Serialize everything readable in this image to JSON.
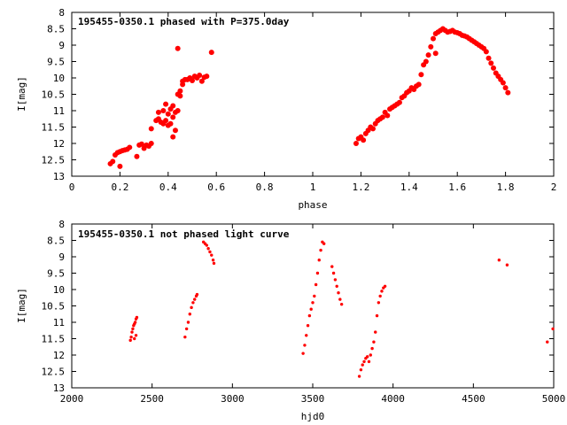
{
  "colors": {
    "data": "#ff0000",
    "axis": "#000000",
    "background": "#ffffff"
  },
  "chart_data": [
    {
      "type": "scatter",
      "title": "195455-0350.1 phased with P=375.0day",
      "xlabel": "phase",
      "ylabel": "I[mag]",
      "xlim": [
        0,
        2
      ],
      "ylim": [
        8,
        13
      ],
      "y_inverted": true,
      "grid": false,
      "marker": "filled-circle",
      "x_ticks": [
        "0",
        "0.2",
        "0.4",
        "0.6",
        "0.8",
        "1",
        "1.2",
        "1.4",
        "1.6",
        "1.8",
        "2"
      ],
      "y_ticks": [
        "8",
        "8.5",
        "9",
        "9.5",
        "10",
        "10.5",
        "11",
        "11.5",
        "12",
        "12.5",
        "13"
      ],
      "series": [
        {
          "points": [
            [
              0.16,
              12.62
            ],
            [
              0.17,
              12.55
            ],
            [
              0.18,
              12.35
            ],
            [
              0.19,
              12.28
            ],
            [
              0.2,
              12.25
            ],
            [
              0.21,
              12.22
            ],
            [
              0.22,
              12.2
            ],
            [
              0.23,
              12.18
            ],
            [
              0.24,
              12.12
            ],
            [
              0.2,
              12.7
            ],
            [
              0.27,
              12.4
            ],
            [
              0.28,
              12.05
            ],
            [
              0.29,
              12.02
            ],
            [
              0.3,
              12.15
            ],
            [
              0.31,
              12.05
            ],
            [
              0.32,
              12.08
            ],
            [
              0.33,
              12.0
            ],
            [
              0.33,
              11.55
            ],
            [
              0.35,
              11.3
            ],
            [
              0.36,
              11.25
            ],
            [
              0.36,
              11.05
            ],
            [
              0.37,
              11.35
            ],
            [
              0.38,
              11.0
            ],
            [
              0.38,
              11.4
            ],
            [
              0.39,
              11.3
            ],
            [
              0.39,
              10.8
            ],
            [
              0.4,
              11.1
            ],
            [
              0.4,
              11.45
            ],
            [
              0.41,
              10.95
            ],
            [
              0.41,
              11.4
            ],
            [
              0.42,
              10.85
            ],
            [
              0.42,
              11.2
            ],
            [
              0.42,
              11.8
            ],
            [
              0.43,
              11.05
            ],
            [
              0.43,
              11.6
            ],
            [
              0.44,
              11.0
            ],
            [
              0.44,
              10.5
            ],
            [
              0.45,
              10.4
            ],
            [
              0.45,
              10.55
            ],
            [
              0.46,
              10.2
            ],
            [
              0.46,
              10.1
            ],
            [
              0.47,
              10.05
            ],
            [
              0.48,
              10.05
            ],
            [
              0.49,
              10.0
            ],
            [
              0.5,
              10.08
            ],
            [
              0.51,
              9.95
            ],
            [
              0.52,
              10.0
            ],
            [
              0.53,
              9.92
            ],
            [
              0.54,
              10.1
            ],
            [
              0.55,
              9.98
            ],
            [
              0.56,
              9.95
            ],
            [
              0.44,
              9.1
            ],
            [
              0.58,
              9.22
            ]
          ]
        },
        {
          "points": [
            [
              1.18,
              12.0
            ],
            [
              1.19,
              11.85
            ],
            [
              1.2,
              11.8
            ],
            [
              1.21,
              11.9
            ],
            [
              1.22,
              11.7
            ],
            [
              1.23,
              11.6
            ],
            [
              1.24,
              11.5
            ],
            [
              1.25,
              11.55
            ],
            [
              1.26,
              11.4
            ],
            [
              1.27,
              11.3
            ],
            [
              1.28,
              11.25
            ],
            [
              1.29,
              11.2
            ],
            [
              1.3,
              11.05
            ],
            [
              1.31,
              11.15
            ],
            [
              1.32,
              10.95
            ],
            [
              1.33,
              10.9
            ],
            [
              1.34,
              10.85
            ],
            [
              1.35,
              10.8
            ],
            [
              1.36,
              10.75
            ],
            [
              1.37,
              10.6
            ],
            [
              1.38,
              10.55
            ],
            [
              1.39,
              10.45
            ],
            [
              1.4,
              10.4
            ],
            [
              1.41,
              10.3
            ],
            [
              1.42,
              10.35
            ],
            [
              1.43,
              10.25
            ],
            [
              1.44,
              10.2
            ],
            [
              1.45,
              9.9
            ],
            [
              1.46,
              9.6
            ],
            [
              1.47,
              9.5
            ],
            [
              1.48,
              9.3
            ],
            [
              1.49,
              9.05
            ],
            [
              1.5,
              8.8
            ],
            [
              1.51,
              8.65
            ],
            [
              1.52,
              8.6
            ],
            [
              1.53,
              8.55
            ],
            [
              1.54,
              8.5
            ],
            [
              1.55,
              8.55
            ],
            [
              1.56,
              8.6
            ],
            [
              1.57,
              8.58
            ],
            [
              1.58,
              8.55
            ],
            [
              1.59,
              8.6
            ],
            [
              1.6,
              8.62
            ],
            [
              1.61,
              8.65
            ],
            [
              1.62,
              8.7
            ],
            [
              1.63,
              8.72
            ],
            [
              1.64,
              8.75
            ],
            [
              1.65,
              8.8
            ],
            [
              1.66,
              8.85
            ],
            [
              1.67,
              8.9
            ],
            [
              1.68,
              8.95
            ],
            [
              1.69,
              9.0
            ],
            [
              1.7,
              9.05
            ],
            [
              1.71,
              9.1
            ],
            [
              1.72,
              9.2
            ],
            [
              1.73,
              9.4
            ],
            [
              1.74,
              9.55
            ],
            [
              1.75,
              9.7
            ],
            [
              1.76,
              9.85
            ],
            [
              1.77,
              9.95
            ],
            [
              1.78,
              10.05
            ],
            [
              1.79,
              10.15
            ],
            [
              1.8,
              10.3
            ],
            [
              1.81,
              10.45
            ],
            [
              1.51,
              9.25
            ]
          ]
        }
      ]
    },
    {
      "type": "scatter",
      "title": "195455-0350.1 not phased light curve",
      "xlabel": "hjd0",
      "ylabel": "I[mag]",
      "xlim": [
        2000,
        5000
      ],
      "ylim": [
        8,
        13
      ],
      "y_inverted": true,
      "grid": false,
      "marker": "small-dot",
      "x_ticks": [
        "2000",
        "2500",
        "3000",
        "3500",
        "4000",
        "4500",
        "5000"
      ],
      "y_ticks": [
        "8",
        "8.5",
        "9",
        "9.5",
        "10",
        "10.5",
        "11",
        "11.5",
        "12",
        "12.5",
        "13"
      ],
      "series": [
        {
          "points": [
            [
              2365,
              11.55
            ],
            [
              2370,
              11.45
            ],
            [
              2375,
              11.3
            ],
            [
              2380,
              11.2
            ],
            [
              2385,
              11.1
            ],
            [
              2390,
              11.05
            ],
            [
              2395,
              11.0
            ],
            [
              2400,
              10.9
            ],
            [
              2405,
              10.85
            ],
            [
              2400,
              11.4
            ],
            [
              2390,
              11.5
            ],
            [
              2705,
              11.45
            ],
            [
              2715,
              11.2
            ],
            [
              2725,
              11.0
            ],
            [
              2735,
              10.75
            ],
            [
              2745,
              10.55
            ],
            [
              2755,
              10.4
            ],
            [
              2765,
              10.3
            ],
            [
              2775,
              10.2
            ],
            [
              2780,
              10.15
            ],
            [
              2820,
              8.55
            ],
            [
              2830,
              8.6
            ],
            [
              2840,
              8.65
            ],
            [
              2850,
              8.75
            ],
            [
              2860,
              8.85
            ],
            [
              2870,
              8.95
            ],
            [
              2880,
              9.1
            ],
            [
              2885,
              9.2
            ],
            [
              3440,
              11.95
            ],
            [
              3450,
              11.7
            ],
            [
              3460,
              11.4
            ],
            [
              3470,
              11.1
            ],
            [
              3480,
              10.8
            ],
            [
              3490,
              10.6
            ],
            [
              3500,
              10.4
            ],
            [
              3510,
              10.2
            ],
            [
              3520,
              9.85
            ],
            [
              3530,
              9.5
            ],
            [
              3540,
              9.1
            ],
            [
              3550,
              8.8
            ],
            [
              3560,
              8.55
            ],
            [
              3570,
              8.6
            ],
            [
              3620,
              9.3
            ],
            [
              3630,
              9.5
            ],
            [
              3640,
              9.7
            ],
            [
              3650,
              9.9
            ],
            [
              3660,
              10.1
            ],
            [
              3670,
              10.3
            ],
            [
              3680,
              10.45
            ],
            [
              3790,
              12.65
            ],
            [
              3800,
              12.45
            ],
            [
              3810,
              12.3
            ],
            [
              3820,
              12.2
            ],
            [
              3830,
              12.1
            ],
            [
              3840,
              12.05
            ],
            [
              3850,
              12.2
            ],
            [
              3860,
              12.0
            ],
            [
              3870,
              11.8
            ],
            [
              3880,
              11.6
            ],
            [
              3890,
              11.3
            ],
            [
              3900,
              10.8
            ],
            [
              3910,
              10.4
            ],
            [
              3920,
              10.2
            ],
            [
              3930,
              10.05
            ],
            [
              3940,
              9.95
            ],
            [
              3950,
              9.9
            ],
            [
              4660,
              9.1
            ],
            [
              4710,
              9.25
            ],
            [
              4960,
              11.6
            ],
            [
              4995,
              11.2
            ]
          ]
        }
      ]
    }
  ]
}
